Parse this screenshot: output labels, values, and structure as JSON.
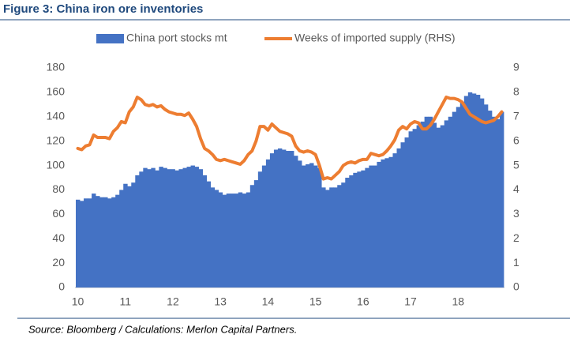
{
  "chart_data": {
    "type": "combo",
    "title": "Figure 3: China iron ore inventories",
    "source": "Source: Bloomberg / Calculations: Merlon Capital Partners.",
    "categories": [
      "10",
      null,
      null,
      null,
      null,
      null,
      null,
      null,
      null,
      null,
      null,
      null,
      "11",
      null,
      null,
      null,
      null,
      null,
      null,
      null,
      null,
      null,
      null,
      null,
      "12",
      null,
      null,
      null,
      null,
      null,
      null,
      null,
      null,
      null,
      null,
      null,
      "13",
      null,
      null,
      null,
      null,
      null,
      null,
      null,
      null,
      null,
      null,
      null,
      "14",
      null,
      null,
      null,
      null,
      null,
      null,
      null,
      null,
      null,
      null,
      null,
      "15",
      null,
      null,
      null,
      null,
      null,
      null,
      null,
      null,
      null,
      null,
      null,
      "16",
      null,
      null,
      null,
      null,
      null,
      null,
      null,
      null,
      null,
      null,
      null,
      "17",
      null,
      null,
      null,
      null,
      null,
      null,
      null,
      null,
      null,
      null,
      null,
      "18",
      null,
      null,
      null,
      null,
      null,
      null,
      null,
      null,
      null,
      null,
      null
    ],
    "series": [
      {
        "name": "China port stocks mt",
        "type": "bar",
        "color": "#4472c4",
        "values": [
          72,
          71,
          73,
          73,
          77,
          75,
          74,
          74,
          73,
          74,
          76,
          80,
          85,
          83,
          86,
          92,
          95,
          98,
          97,
          98,
          96,
          99,
          98,
          97,
          97,
          96,
          97,
          98,
          99,
          100,
          99,
          97,
          92,
          87,
          82,
          80,
          78,
          76,
          77,
          77,
          77,
          78,
          77,
          78,
          84,
          88,
          95,
          100,
          105,
          110,
          113,
          114,
          113,
          112,
          112,
          108,
          104,
          100,
          101,
          102,
          100,
          98,
          82,
          80,
          82,
          82,
          84,
          86,
          90,
          92,
          94,
          95,
          96,
          98,
          100,
          100,
          103,
          105,
          106,
          107,
          110,
          114,
          119,
          123,
          128,
          130,
          133,
          136,
          140,
          140,
          135,
          131,
          133,
          137,
          140,
          144,
          148,
          152,
          157,
          160,
          159,
          158,
          155,
          150,
          145,
          140,
          138,
          144
        ]
      },
      {
        "name": "Weeks of imported supply (RHS)",
        "type": "line",
        "axis": "y2",
        "color": "#ed7d31",
        "values": [
          5.7,
          5.65,
          5.8,
          5.85,
          6.25,
          6.15,
          6.15,
          6.15,
          6.1,
          6.4,
          6.55,
          6.8,
          6.75,
          7.2,
          7.4,
          7.8,
          7.7,
          7.5,
          7.45,
          7.5,
          7.4,
          7.45,
          7.3,
          7.2,
          7.15,
          7.1,
          7.1,
          7.05,
          7.15,
          6.9,
          6.6,
          6.1,
          5.7,
          5.6,
          5.45,
          5.25,
          5.2,
          5.25,
          5.2,
          5.15,
          5.1,
          5.05,
          5.2,
          5.45,
          5.6,
          6.0,
          6.6,
          6.6,
          6.45,
          6.7,
          6.55,
          6.4,
          6.35,
          6.3,
          6.2,
          5.8,
          5.6,
          5.55,
          5.6,
          5.55,
          5.45,
          5.0,
          4.45,
          4.5,
          4.45,
          4.6,
          4.75,
          5.0,
          5.1,
          5.15,
          5.1,
          5.2,
          5.25,
          5.25,
          5.5,
          5.45,
          5.4,
          5.45,
          5.6,
          5.8,
          6.05,
          6.45,
          6.6,
          6.5,
          6.7,
          6.8,
          6.75,
          6.5,
          6.5,
          6.65,
          6.9,
          7.2,
          7.5,
          7.8,
          7.75,
          7.75,
          7.7,
          7.6,
          7.35,
          7.1,
          7.0,
          6.9,
          6.8,
          6.75,
          6.8,
          6.85,
          7.0,
          7.2
        ]
      }
    ],
    "ylim": [
      0,
      180
    ],
    "yticks": [
      0,
      20,
      40,
      60,
      80,
      100,
      120,
      140,
      160,
      180
    ],
    "y2lim": [
      0,
      9
    ],
    "y2ticks": [
      0,
      1,
      2,
      3,
      4,
      5,
      6,
      7,
      8,
      9
    ],
    "grid": false
  }
}
